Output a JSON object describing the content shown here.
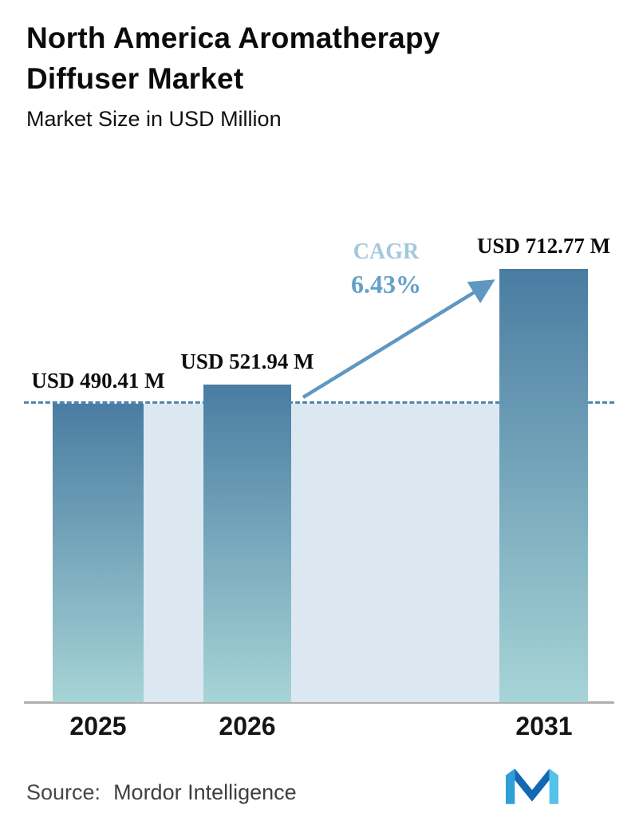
{
  "header": {
    "title": "North America Aromatherapy Diffuser Market",
    "subtitle": "Market Size in USD Million"
  },
  "chart_data": {
    "type": "bar",
    "categories": [
      "2025",
      "2026",
      "2031"
    ],
    "values": [
      490.41,
      521.94,
      712.77
    ],
    "value_labels": [
      "USD 490.41 M",
      "USD 521.94 M",
      "USD 712.77 M"
    ],
    "title": "North America Aromatherapy Diffuser Market",
    "subtitle": "Market Size in USD Million",
    "xlabel": "",
    "ylabel": "Market Size in USD Million",
    "ylim": [
      0,
      800
    ],
    "grid": false,
    "legend": "none",
    "dashed_reference_value": 490.41,
    "annotation": {
      "label": "CAGR",
      "value": "6.43%"
    },
    "colors": {
      "bar_top": "#4a7ca2",
      "bar_bottom": "#a6d4d6",
      "dashed_line": "#4d86ae",
      "region": "#dce8f1",
      "arrow": "#5e97c1",
      "cagr_label": "#a3c8dd",
      "cagr_value": "#64a0c8"
    }
  },
  "footer": {
    "source_label": "Source:",
    "source_value": "Mordor Intelligence",
    "logo": "mordor-intelligence-logo",
    "logo_colors": [
      "#2f9fd8",
      "#1268b3",
      "#54c2ea"
    ]
  }
}
